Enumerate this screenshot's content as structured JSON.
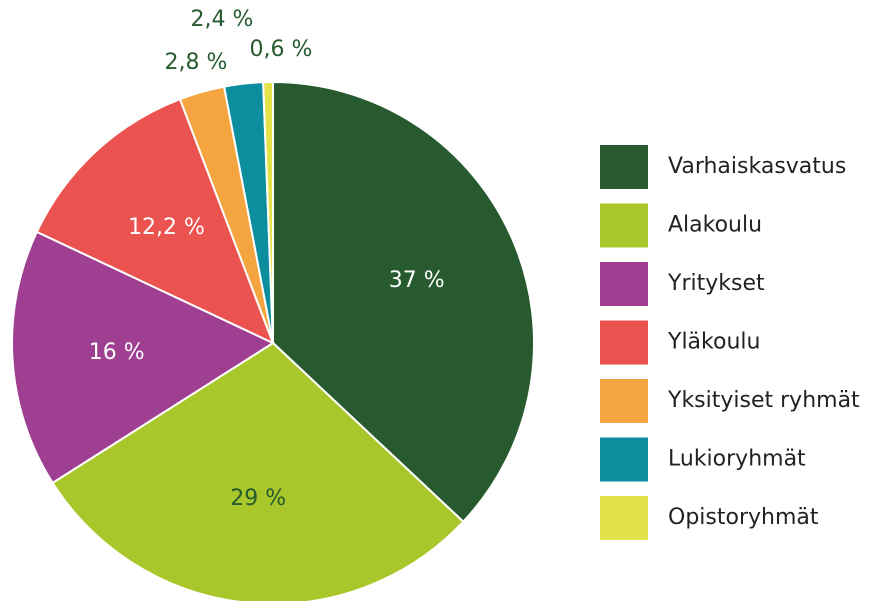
{
  "chart_data": {
    "type": "pie",
    "categories": [
      "Varhaiskasvatus",
      "Alakoulu",
      "Yritykset",
      "Yläkoulu",
      "Yksityiset ryhmät",
      "Lukioryhmät",
      "Opistoryhmät"
    ],
    "values": [
      37,
      29,
      16,
      12.2,
      2.8,
      2.4,
      0.6
    ],
    "value_labels": [
      "37 %",
      "29 %",
      "16 %",
      "12,2 %",
      "2,8 %",
      "2,4 %",
      "0,6 %"
    ],
    "colors": [
      "#275a2e",
      "#a9c72b",
      "#9f3f92",
      "#ea5350",
      "#f4a53f",
      "#0c8e9f",
      "#e3e24a"
    ],
    "label_colors": [
      "#ffffff",
      "#275a2e",
      "#ffffff",
      "#ffffff",
      "#275a2e",
      "#275a2e",
      "#275a2e"
    ],
    "legend": "right"
  }
}
